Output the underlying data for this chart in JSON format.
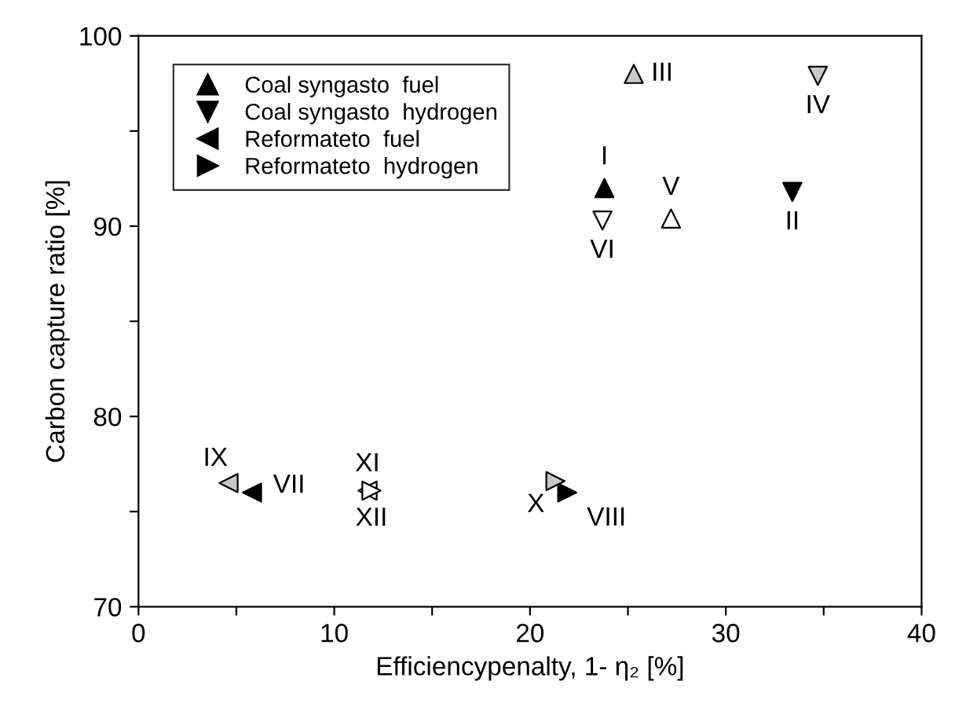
{
  "chart_data": {
    "type": "scatter",
    "xlabel": "Efficiencypenalty, 1- η₂ [%]",
    "ylabel": "Carbon capture ratio [%]",
    "xlim": [
      0,
      40
    ],
    "ylim": [
      70,
      100
    ],
    "xticks": [
      0,
      {
        "value": 5,
        "label": null
      },
      10,
      {
        "value": 15,
        "label": null
      },
      20,
      {
        "value": 25,
        "label": null
      },
      30,
      {
        "value": 35,
        "label": null
      },
      40
    ],
    "yticks": [
      70,
      {
        "value": 75,
        "label": null
      },
      80,
      {
        "value": 85,
        "label": null
      },
      90,
      {
        "value": 95,
        "label": null
      },
      100
    ],
    "grid": false,
    "legend": "top left",
    "series": [
      {
        "name": "Coal syngasto  fuel",
        "color": "#000000",
        "marker": "triangle-up",
        "x": [
          23.8,
          25.3,
          27.2
        ],
        "values": [
          92.0,
          98.0,
          90.4
        ],
        "colors": [
          "#000000",
          "#c8c8c8",
          "#ffffff"
        ]
      },
      {
        "name": "Coal syngasto  hydrogen",
        "color": "#000000",
        "marker": "triangle-down",
        "x": [
          33.4,
          34.7,
          23.7
        ],
        "values": [
          91.8,
          97.9,
          90.3
        ],
        "colors": [
          "#000000",
          "#c8c8c8",
          "#ffffff"
        ]
      },
      {
        "name": "Reformateto  fuel",
        "color": "#000000",
        "marker": "triangle-left",
        "x": [
          5.8,
          4.6,
          11.7
        ],
        "values": [
          76.0,
          76.5,
          76.1
        ],
        "colors": [
          "#000000",
          "#c8c8c8",
          "#ffffff"
        ]
      },
      {
        "name": "Reformateto  hydrogen",
        "color": "#000000",
        "marker": "triangle-right",
        "x": [
          21.9,
          21.3,
          11.9
        ],
        "values": [
          76.0,
          76.6,
          76.1
        ],
        "colors": [
          "#000000",
          "#c8c8c8",
          "#ffffff"
        ]
      }
    ],
    "annotations": [
      {
        "text": "I",
        "x": 23.8,
        "y": 92.0
      },
      {
        "text": "II",
        "x": 33.4,
        "y": 91.8
      },
      {
        "text": "III",
        "x": 25.3,
        "y": 98.0
      },
      {
        "text": "IV",
        "x": 34.7,
        "y": 97.9
      },
      {
        "text": "V",
        "x": 27.2,
        "y": 90.4
      },
      {
        "text": "VI",
        "x": 23.7,
        "y": 90.3
      },
      {
        "text": "VII",
        "x": 5.8,
        "y": 76.0
      },
      {
        "text": "VIII",
        "x": 21.9,
        "y": 76.0
      },
      {
        "text": "IX",
        "x": 4.6,
        "y": 76.5
      },
      {
        "text": "X",
        "x": 21.3,
        "y": 76.6
      },
      {
        "text": "XI",
        "x": 11.7,
        "y": 76.1
      },
      {
        "text": "XII",
        "x": 11.9,
        "y": 76.1
      }
    ]
  }
}
